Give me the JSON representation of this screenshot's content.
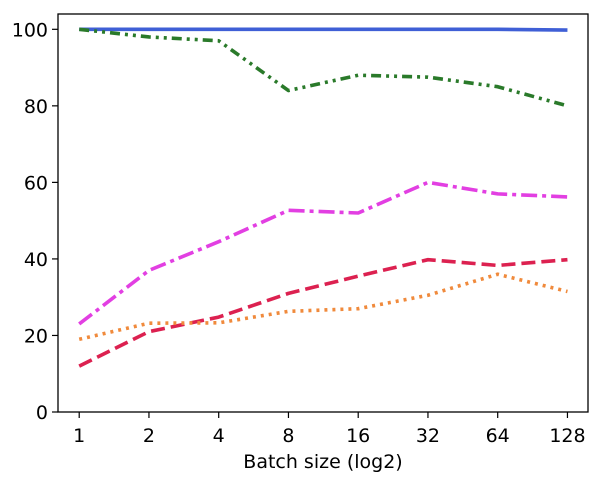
{
  "chart_data": {
    "type": "line",
    "title": "",
    "xlabel": "Batch size (log2)",
    "ylabel": "",
    "x_scale": "log2",
    "x_ticks": [
      1,
      2,
      4,
      8,
      16,
      32,
      64,
      128
    ],
    "x_tick_labels": [
      "1",
      "2",
      "4",
      "8",
      "16",
      "32",
      "64",
      "128"
    ],
    "y_ticks": [
      0,
      20,
      40,
      60,
      80,
      100
    ],
    "y_tick_labels": [
      "0",
      "20",
      "40",
      "60",
      "80",
      "100"
    ],
    "ylim": [
      0,
      104
    ],
    "xlim": [
      0.81,
      157
    ],
    "grid": false,
    "legend": "none",
    "x": [
      1,
      2,
      4,
      8,
      16,
      32,
      64,
      128
    ],
    "series": [
      {
        "values": [
          100,
          100,
          100,
          100,
          100,
          100,
          100,
          99.8
        ],
        "color": "#3f5fd6",
        "style": "solid"
      },
      {
        "values": [
          100,
          98,
          97,
          84,
          88,
          87.5,
          85,
          80
        ],
        "color": "#2a7a2a",
        "style": "dashdotdot"
      },
      {
        "values": [
          23,
          37,
          44.5,
          52.7,
          52,
          60,
          57,
          56.2
        ],
        "color": "#e23fe2",
        "style": "dashdot"
      },
      {
        "values": [
          12,
          21,
          24.8,
          31,
          35.5,
          39.8,
          38.3,
          39.8
        ],
        "color": "#dc2150",
        "style": "dashed"
      },
      {
        "values": [
          19,
          23.2,
          23.3,
          26.3,
          27,
          30.5,
          36,
          31.5
        ],
        "color": "#f08a3c",
        "style": "dotted"
      }
    ]
  }
}
